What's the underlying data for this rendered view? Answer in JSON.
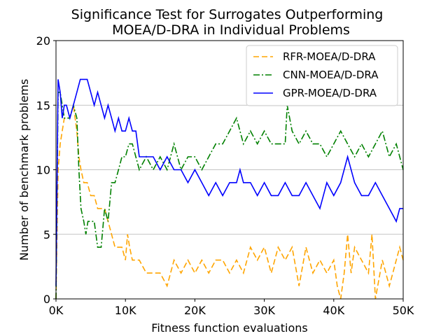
{
  "chart_data": {
    "type": "line",
    "title": "Significance Test for Surrogates Outperforming MOEA/D-DRA in Individual Problems",
    "title_lines": [
      "Significance Test for Surrogates Outperforming",
      "MOEA/D-DRA in Individual Problems"
    ],
    "xlabel": "Fitness function evaluations",
    "ylabel": "Number of benchmark problems",
    "xlim": [
      0,
      50000
    ],
    "ylim": [
      0,
      20
    ],
    "x_ticks": [
      0,
      10000,
      20000,
      30000,
      40000,
      50000
    ],
    "x_tick_labels": [
      "0K",
      "10K",
      "20K",
      "30K",
      "40K",
      "50K"
    ],
    "y_ticks": [
      0,
      5,
      10,
      15,
      20
    ],
    "y_tick_labels": [
      "0",
      "5",
      "10",
      "15",
      "20"
    ],
    "grid": "horizontal",
    "legend_position": "top-right",
    "series": [
      {
        "name": "RFR-MOEA/D-DRA",
        "color": "#ffa500",
        "dash": "dashed",
        "x": [
          0,
          300,
          600,
          900,
          1200,
          1500,
          2000,
          2500,
          3000,
          3300,
          3600,
          4000,
          4500,
          5000,
          5500,
          6000,
          6500,
          7000,
          7500,
          8000,
          8500,
          9000,
          9500,
          10000,
          10300,
          10600,
          11000,
          12000,
          13000,
          14000,
          15000,
          16000,
          17000,
          18000,
          19000,
          20000,
          21000,
          22000,
          23000,
          24000,
          25000,
          26000,
          27000,
          28000,
          29000,
          30000,
          31000,
          32000,
          33000,
          34000,
          35000,
          36000,
          37000,
          38000,
          39000,
          40000,
          40500,
          41000,
          41500,
          42000,
          42500,
          43000,
          44000,
          45000,
          45500,
          46000,
          47000,
          48000,
          49000,
          49500,
          50000
        ],
        "y": [
          0,
          10,
          12,
          13,
          14,
          14,
          14,
          15,
          13,
          11,
          10,
          9,
          9,
          8,
          8,
          7,
          7,
          7,
          6,
          5,
          4,
          4,
          4,
          3,
          5,
          4,
          3,
          3,
          2,
          2,
          2,
          1,
          3,
          2,
          3,
          2,
          3,
          2,
          3,
          3,
          2,
          3,
          2,
          4,
          3,
          4,
          2,
          4,
          3,
          4,
          1,
          4,
          2,
          3,
          2,
          3,
          1,
          0,
          2,
          5,
          2,
          4,
          3,
          2,
          5,
          0,
          3,
          1,
          3,
          4,
          3
        ]
      },
      {
        "name": "CNN-MOEA/D-DRA",
        "color": "#008000",
        "dash": "dashdot",
        "x": [
          0,
          300,
          600,
          900,
          1200,
          1500,
          2000,
          2500,
          3000,
          3300,
          3600,
          4000,
          4300,
          4600,
          5000,
          5500,
          6000,
          6500,
          7000,
          7500,
          8000,
          8500,
          9000,
          9500,
          10000,
          10500,
          11000,
          12000,
          13000,
          14000,
          15000,
          16000,
          17000,
          18000,
          19000,
          20000,
          21000,
          22000,
          23000,
          24000,
          25000,
          26000,
          27000,
          28000,
          29000,
          30000,
          31000,
          32000,
          33000,
          33300,
          34000,
          35000,
          36000,
          37000,
          38000,
          39000,
          40000,
          41000,
          42000,
          43000,
          44000,
          45000,
          46000,
          47000,
          48000,
          49000,
          50000
        ],
        "y": [
          0,
          16,
          16,
          15,
          14,
          14,
          14,
          15,
          14,
          10,
          7,
          6,
          5,
          6,
          6,
          6,
          4,
          4,
          7,
          6,
          9,
          9,
          10,
          11,
          11,
          12,
          12,
          10,
          11,
          10,
          11,
          10,
          12,
          10,
          11,
          11,
          10,
          11,
          12,
          12,
          13,
          14,
          12,
          13,
          12,
          13,
          12,
          12,
          12,
          15,
          13,
          12,
          13,
          12,
          12,
          11,
          12,
          13,
          12,
          11,
          12,
          11,
          12,
          13,
          11,
          12,
          10
        ]
      },
      {
        "name": "GPR-MOEA/D-DRA",
        "color": "#0000ff",
        "dash": "solid",
        "x": [
          0,
          300,
          600,
          900,
          1200,
          1500,
          2000,
          2500,
          3000,
          3500,
          4000,
          4500,
          5000,
          5500,
          6000,
          6500,
          7000,
          7500,
          8000,
          8500,
          9000,
          9500,
          10000,
          10500,
          11000,
          11500,
          12000,
          13000,
          14000,
          15000,
          16000,
          17000,
          18000,
          19000,
          20000,
          21000,
          22000,
          23000,
          24000,
          25000,
          26000,
          26500,
          27000,
          28000,
          29000,
          30000,
          31000,
          32000,
          33000,
          34000,
          35000,
          36000,
          37000,
          38000,
          39000,
          40000,
          41000,
          42000,
          43000,
          44000,
          45000,
          46000,
          47000,
          48000,
          49000,
          49500,
          50000
        ],
        "y": [
          1,
          17,
          16,
          14,
          15,
          15,
          14,
          15,
          16,
          17,
          17,
          17,
          16,
          15,
          16,
          15,
          14,
          15,
          14,
          13,
          14,
          13,
          13,
          14,
          13,
          13,
          11,
          11,
          11,
          10,
          11,
          10,
          10,
          9,
          10,
          9,
          8,
          9,
          8,
          9,
          9,
          10,
          9,
          9,
          8,
          9,
          8,
          8,
          9,
          8,
          8,
          9,
          8,
          7,
          9,
          8,
          9,
          11,
          9,
          8,
          8,
          9,
          8,
          7,
          6,
          7,
          7
        ]
      }
    ]
  }
}
